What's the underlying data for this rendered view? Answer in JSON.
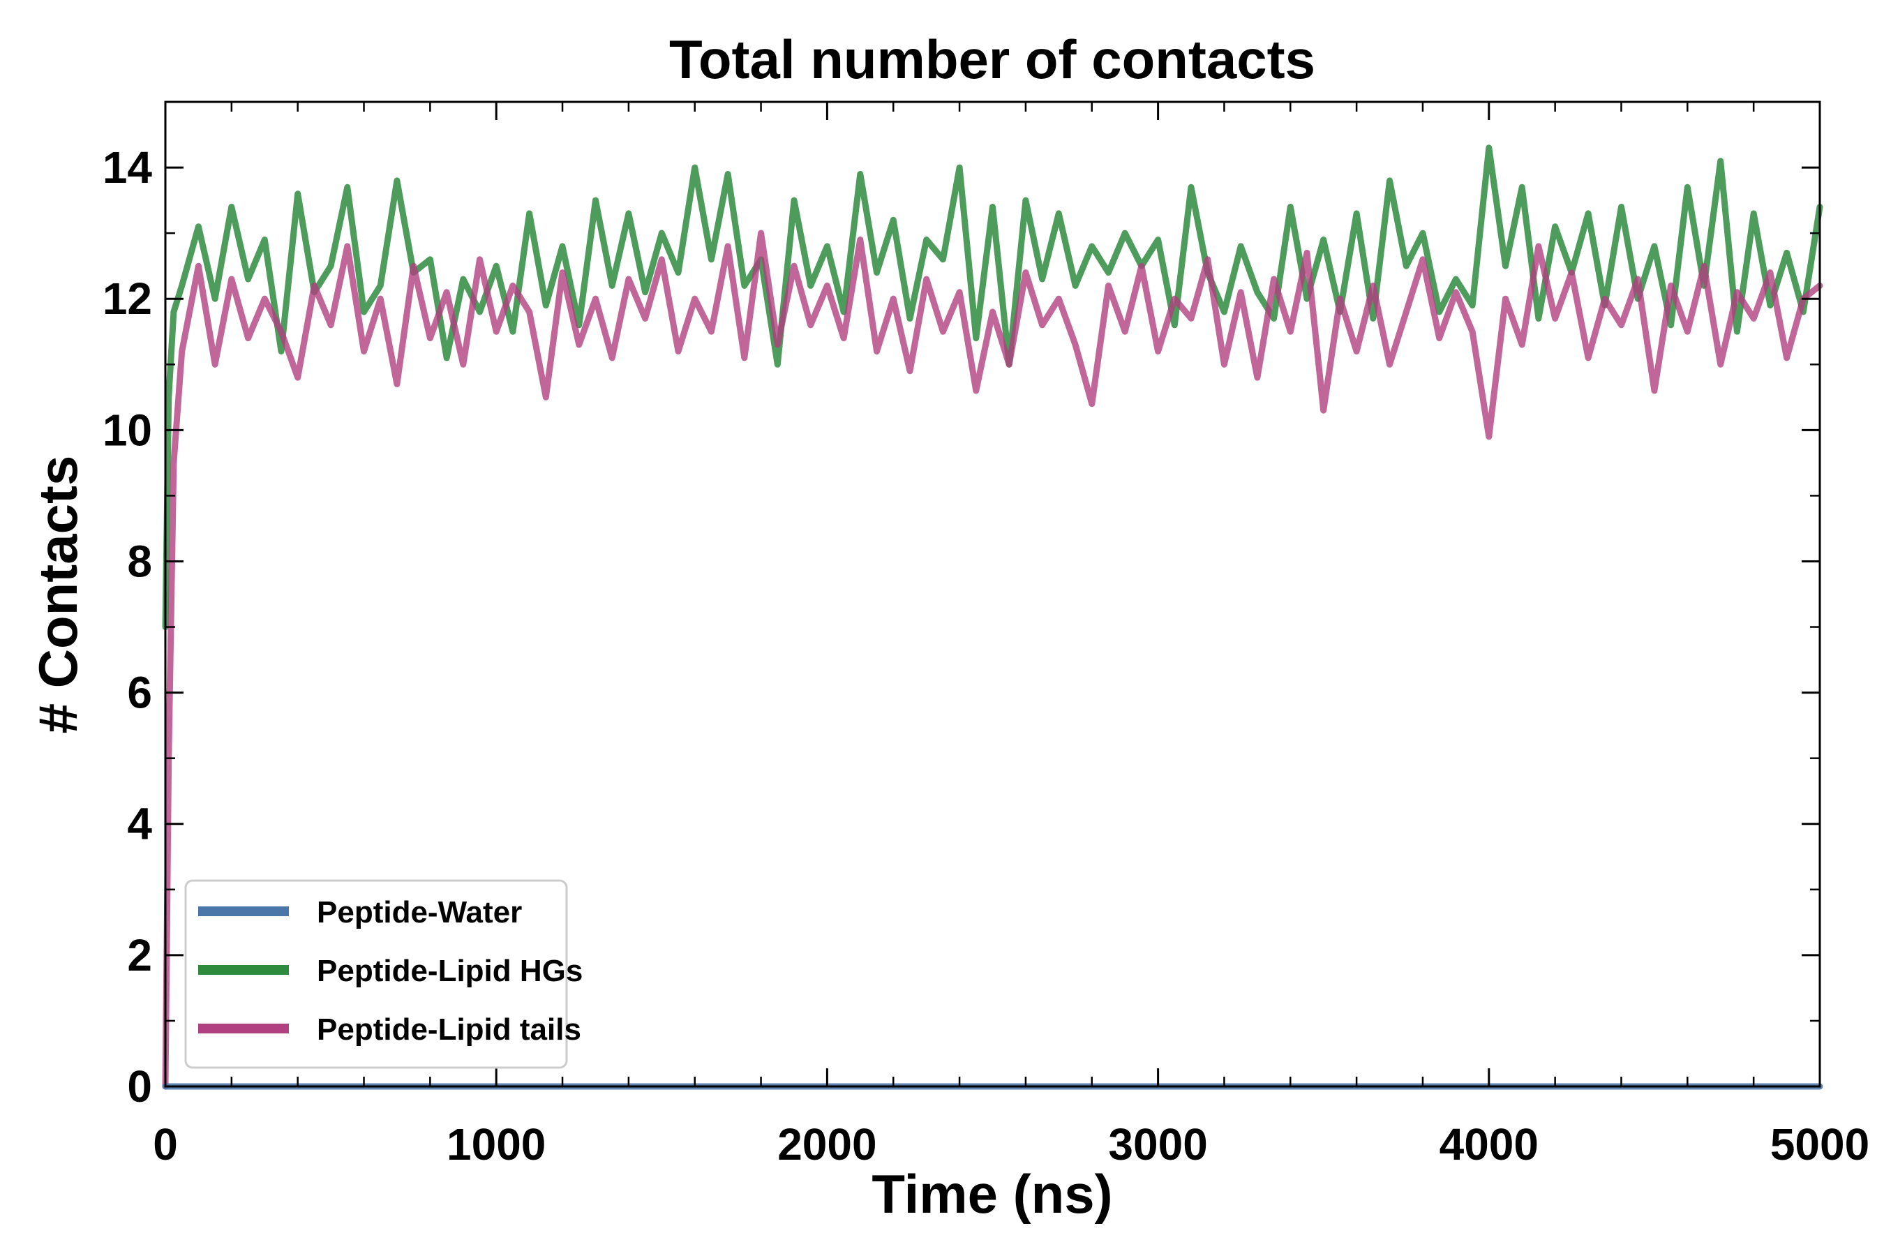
{
  "chart_data": {
    "type": "line",
    "title": "Total number of contacts",
    "xlabel": "Time (ns)",
    "ylabel": "# Contacts",
    "xlim": [
      0,
      5000
    ],
    "ylim": [
      0,
      15
    ],
    "x_ticks": [
      0,
      1000,
      2000,
      3000,
      4000,
      5000
    ],
    "y_ticks": [
      0,
      2,
      4,
      6,
      8,
      10,
      12,
      14
    ],
    "x_tick_labels": [
      "0",
      "1000",
      "2000",
      "3000",
      "4000",
      "5000"
    ],
    "y_tick_labels": [
      "0",
      "2",
      "4",
      "6",
      "8",
      "10",
      "12",
      "14"
    ],
    "grid": false,
    "legend_position": "lower-left",
    "series": [
      {
        "name": "Peptide-Water",
        "color": "#4a76a8",
        "x": [
          0,
          500,
          1000,
          1500,
          2000,
          2500,
          3000,
          3500,
          4000,
          4500,
          5000
        ],
        "values": [
          0,
          0,
          0,
          0,
          0,
          0,
          0,
          0,
          0,
          0,
          0
        ]
      },
      {
        "name": "Peptide-Lipid HGs",
        "color": "#2e8b3e",
        "x": [
          0,
          10,
          25,
          50,
          100,
          150,
          200,
          250,
          300,
          350,
          400,
          450,
          500,
          550,
          600,
          650,
          700,
          750,
          800,
          850,
          900,
          950,
          1000,
          1050,
          1100,
          1150,
          1200,
          1250,
          1300,
          1350,
          1400,
          1450,
          1500,
          1550,
          1600,
          1650,
          1700,
          1750,
          1800,
          1850,
          1900,
          1950,
          2000,
          2050,
          2100,
          2150,
          2200,
          2250,
          2300,
          2350,
          2400,
          2450,
          2500,
          2550,
          2600,
          2650,
          2700,
          2750,
          2800,
          2850,
          2900,
          2950,
          3000,
          3050,
          3100,
          3150,
          3200,
          3250,
          3300,
          3350,
          3400,
          3450,
          3500,
          3550,
          3600,
          3650,
          3700,
          3750,
          3800,
          3850,
          3900,
          3950,
          4000,
          4050,
          4100,
          4150,
          4200,
          4250,
          4300,
          4350,
          4400,
          4450,
          4500,
          4550,
          4600,
          4650,
          4700,
          4750,
          4800,
          4850,
          4900,
          4950,
          5000
        ],
        "values": [
          7.0,
          10.5,
          11.8,
          12.2,
          13.1,
          12.0,
          13.4,
          12.3,
          12.9,
          11.2,
          13.6,
          12.1,
          12.5,
          13.7,
          11.8,
          12.2,
          13.8,
          12.4,
          12.6,
          11.1,
          12.3,
          11.8,
          12.5,
          11.5,
          13.3,
          11.9,
          12.8,
          11.6,
          13.5,
          12.2,
          13.3,
          12.1,
          13.0,
          12.4,
          14.0,
          12.6,
          13.9,
          12.2,
          12.6,
          11.0,
          13.5,
          12.2,
          12.8,
          11.8,
          13.9,
          12.4,
          13.2,
          11.7,
          12.9,
          12.6,
          14.0,
          11.4,
          13.4,
          11.0,
          13.5,
          12.3,
          13.3,
          12.2,
          12.8,
          12.4,
          13.0,
          12.5,
          12.9,
          11.6,
          13.7,
          12.4,
          11.8,
          12.8,
          12.1,
          11.7,
          13.4,
          12.0,
          12.9,
          11.8,
          13.3,
          11.7,
          13.8,
          12.5,
          13.0,
          11.8,
          12.3,
          11.9,
          14.3,
          12.5,
          13.7,
          11.7,
          13.1,
          12.4,
          13.3,
          11.9,
          13.4,
          12.0,
          12.8,
          11.6,
          13.7,
          12.2,
          14.1,
          11.5,
          13.3,
          11.9,
          12.7,
          11.8,
          13.4
        ]
      },
      {
        "name": "Peptide-Lipid tails",
        "color": "#b0407f",
        "x": [
          0,
          10,
          25,
          50,
          100,
          150,
          200,
          250,
          300,
          350,
          400,
          450,
          500,
          550,
          600,
          650,
          700,
          750,
          800,
          850,
          900,
          950,
          1000,
          1050,
          1100,
          1150,
          1200,
          1250,
          1300,
          1350,
          1400,
          1450,
          1500,
          1550,
          1600,
          1650,
          1700,
          1750,
          1800,
          1850,
          1900,
          1950,
          2000,
          2050,
          2100,
          2150,
          2200,
          2250,
          2300,
          2350,
          2400,
          2450,
          2500,
          2550,
          2600,
          2650,
          2700,
          2750,
          2800,
          2850,
          2900,
          2950,
          3000,
          3050,
          3100,
          3150,
          3200,
          3250,
          3300,
          3350,
          3400,
          3450,
          3500,
          3550,
          3600,
          3650,
          3700,
          3750,
          3800,
          3850,
          3900,
          3950,
          4000,
          4050,
          4100,
          4150,
          4200,
          4250,
          4300,
          4350,
          4400,
          4450,
          4500,
          4550,
          4600,
          4650,
          4700,
          4750,
          4800,
          4850,
          4900,
          4950,
          5000
        ],
        "values": [
          0.0,
          5.0,
          9.5,
          11.2,
          12.5,
          11.0,
          12.3,
          11.4,
          12.0,
          11.5,
          10.8,
          12.2,
          11.6,
          12.8,
          11.2,
          12.0,
          10.7,
          12.5,
          11.4,
          12.1,
          11.0,
          12.6,
          11.5,
          12.2,
          11.8,
          10.5,
          12.4,
          11.3,
          12.0,
          11.1,
          12.3,
          11.7,
          12.6,
          11.2,
          12.0,
          11.5,
          12.8,
          11.1,
          13.0,
          11.3,
          12.5,
          11.6,
          12.2,
          11.4,
          12.9,
          11.2,
          12.0,
          10.9,
          12.3,
          11.5,
          12.1,
          10.6,
          11.8,
          11.0,
          12.4,
          11.6,
          12.0,
          11.3,
          10.4,
          12.2,
          11.5,
          12.5,
          11.2,
          12.0,
          11.7,
          12.6,
          11.0,
          12.1,
          10.8,
          12.3,
          11.5,
          12.7,
          10.3,
          12.0,
          11.2,
          12.2,
          11.0,
          11.8,
          12.6,
          11.4,
          12.1,
          11.5,
          9.9,
          12.0,
          11.3,
          12.8,
          11.7,
          12.4,
          11.1,
          12.0,
          11.6,
          12.3,
          10.6,
          12.2,
          11.5,
          12.5,
          11.0,
          12.1,
          11.7,
          12.4,
          11.1,
          12.0,
          12.2
        ]
      }
    ]
  }
}
